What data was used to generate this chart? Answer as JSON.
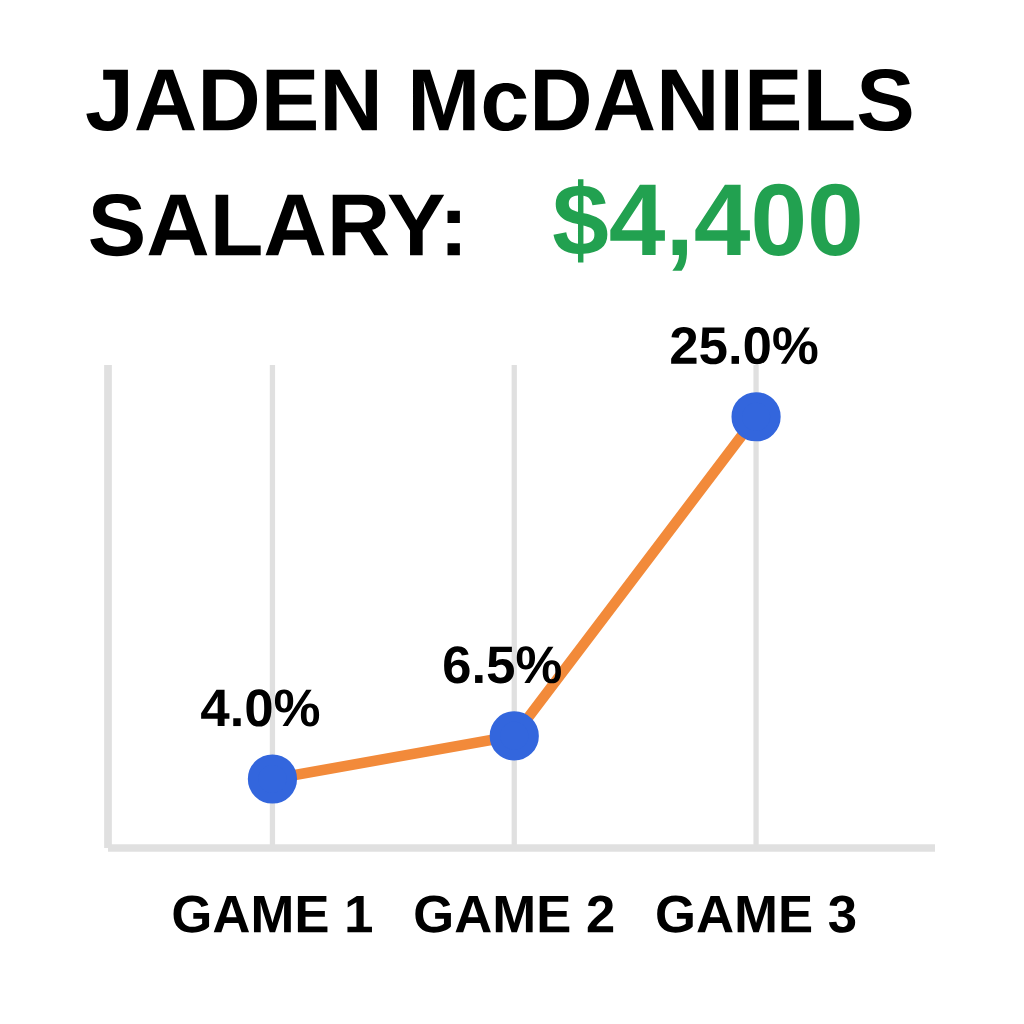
{
  "chart_data": {
    "type": "line",
    "title": "JADEN McDANIELS",
    "subtitle": "SALARY:",
    "annotations": [
      "$4,400"
    ],
    "categories": [
      "GAME 1",
      "GAME 2",
      "GAME 3"
    ],
    "series": [
      {
        "color": "#f28a3a",
        "values": [
          4.0,
          6.5,
          25.0
        ],
        "value_labels": [
          "4.0%",
          "6.5%",
          "25.0%"
        ]
      }
    ],
    "ylim": [
      0,
      28
    ],
    "grid": "x",
    "marker": "circle",
    "tick_labels": "x"
  }
}
